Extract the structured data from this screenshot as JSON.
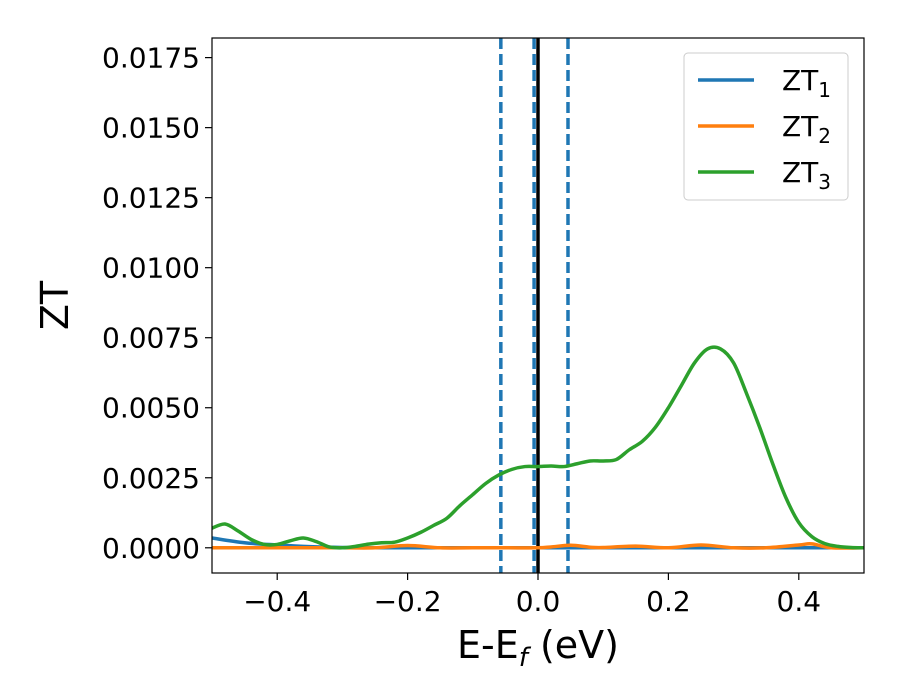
{
  "chart_data": {
    "type": "line",
    "xlabel_main": "E-E",
    "xlabel_sub": "f",
    "xlabel_unit": " (eV)",
    "ylabel": "ZT",
    "xlim": [
      -0.5,
      0.5
    ],
    "ylim": [
      -0.0009,
      0.0182
    ],
    "x_ticks": [
      -0.4,
      -0.2,
      0.0,
      0.2,
      0.4
    ],
    "x_tick_labels": [
      "−0.4",
      "−0.2",
      "0.0",
      "0.2",
      "0.4"
    ],
    "y_ticks": [
      0.0,
      0.0025,
      0.005,
      0.0075,
      0.01,
      0.0125,
      0.015,
      0.0175
    ],
    "y_tick_labels": [
      "0.0000",
      "0.0025",
      "0.0050",
      "0.0075",
      "0.0100",
      "0.0125",
      "0.0150",
      "0.0175"
    ],
    "grid": false,
    "legend_position": "top-right",
    "vertical_lines": [
      {
        "x": -0.057,
        "style": "dashed",
        "color": "#1f77b4"
      },
      {
        "x": -0.006,
        "style": "dashed",
        "color": "#1f77b4"
      },
      {
        "x": 0.046,
        "style": "dashed",
        "color": "#1f77b4"
      },
      {
        "x": 0.0,
        "style": "solid",
        "color": "#000000"
      }
    ],
    "series": [
      {
        "name_main": "ZT",
        "name_sub": "1",
        "color": "#1f77b4",
        "x": [
          -0.5,
          -0.45,
          -0.4,
          -0.35,
          -0.3,
          -0.25,
          -0.2,
          -0.15,
          -0.1,
          -0.05,
          0.0,
          0.05,
          0.1,
          0.15,
          0.2,
          0.25,
          0.3,
          0.35,
          0.4,
          0.45,
          0.5
        ],
        "y": [
          0.00035,
          0.00018,
          0.0001,
          4e-05,
          1e-05,
          0.0,
          0.0,
          0.0,
          0.0,
          0.0,
          0.0,
          0.0,
          0.0,
          0.0,
          0.0,
          0.0,
          0.0,
          0.0,
          0.0,
          0.0,
          0.0
        ]
      },
      {
        "name_main": "ZT",
        "name_sub": "2",
        "color": "#ff7f0e",
        "x": [
          -0.5,
          -0.45,
          -0.4,
          -0.35,
          -0.3,
          -0.25,
          -0.2,
          -0.15,
          -0.1,
          -0.05,
          0.0,
          0.02,
          0.05,
          0.08,
          0.1,
          0.15,
          0.2,
          0.25,
          0.3,
          0.35,
          0.4,
          0.42,
          0.45,
          0.5
        ],
        "y": [
          0.0,
          0.0,
          0.0,
          0.0,
          0.0,
          0.0,
          8e-05,
          0.0,
          0.0,
          0.0,
          0.0,
          3e-05,
          9e-05,
          2e-05,
          1e-05,
          6e-05,
          0.0,
          0.0001,
          0.0,
          0.0,
          0.0001,
          0.00014,
          0.0,
          0.0
        ]
      },
      {
        "name_main": "ZT",
        "name_sub": "3",
        "color": "#2ca02c",
        "x": [
          -0.5,
          -0.48,
          -0.46,
          -0.44,
          -0.42,
          -0.4,
          -0.38,
          -0.36,
          -0.34,
          -0.32,
          -0.3,
          -0.28,
          -0.26,
          -0.24,
          -0.22,
          -0.2,
          -0.18,
          -0.16,
          -0.14,
          -0.12,
          -0.1,
          -0.08,
          -0.06,
          -0.04,
          -0.02,
          0.0,
          0.02,
          0.04,
          0.06,
          0.08,
          0.1,
          0.12,
          0.14,
          0.16,
          0.18,
          0.2,
          0.22,
          0.24,
          0.26,
          0.28,
          0.3,
          0.32,
          0.34,
          0.36,
          0.38,
          0.4,
          0.42,
          0.44,
          0.46,
          0.48,
          0.5
        ],
        "y": [
          0.0007,
          0.00085,
          0.0006,
          0.0003,
          0.00012,
          0.00012,
          0.00025,
          0.00035,
          0.00022,
          3e-05,
          0.0,
          5e-05,
          0.00013,
          0.00018,
          0.0002,
          0.00035,
          0.00055,
          0.0008,
          0.00105,
          0.0015,
          0.0019,
          0.0023,
          0.0026,
          0.0028,
          0.0029,
          0.0029,
          0.00292,
          0.0029,
          0.003,
          0.0031,
          0.0031,
          0.00315,
          0.0035,
          0.0038,
          0.0043,
          0.005,
          0.0058,
          0.0066,
          0.0071,
          0.0071,
          0.0066,
          0.0055,
          0.0043,
          0.003,
          0.0018,
          0.0009,
          0.0004,
          0.00015,
          5e-05,
          1e-05,
          0.0
        ]
      }
    ]
  }
}
